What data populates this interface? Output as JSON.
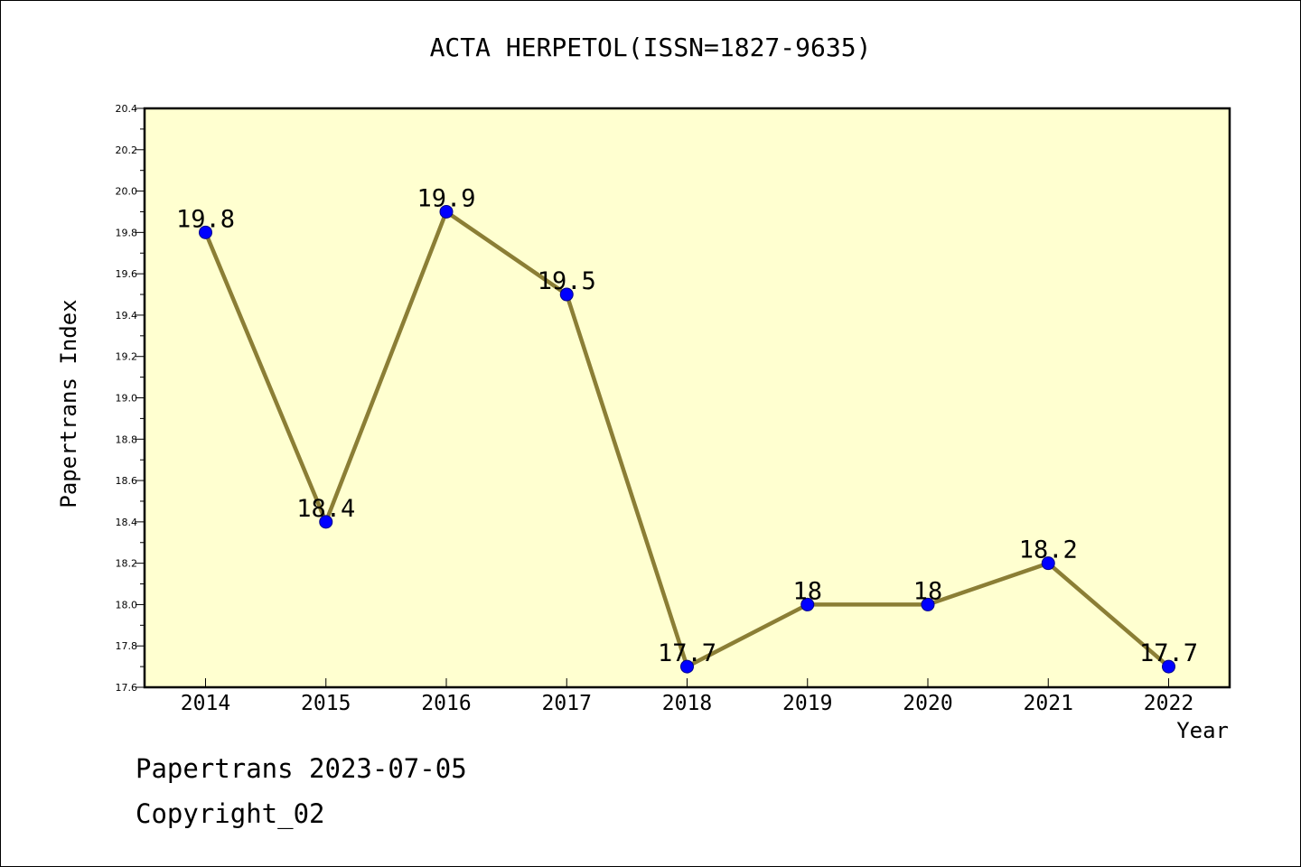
{
  "chart_data": {
    "type": "line",
    "title": "ACTA HERPETOL(ISSN=1827-9635)",
    "xlabel": "Year",
    "ylabel": "Papertrans Index",
    "categories": [
      "2014",
      "2015",
      "2016",
      "2017",
      "2018",
      "2019",
      "2020",
      "2021",
      "2022"
    ],
    "values": [
      19.8,
      18.4,
      19.9,
      19.5,
      17.7,
      18.0,
      18.0,
      18.2,
      17.7
    ],
    "data_labels": [
      "19.8",
      "18.4",
      "19.9",
      "19.5",
      "17.7",
      "18",
      "18",
      "18.2",
      "17.7"
    ],
    "ylim": [
      17.6,
      20.4
    ],
    "yticks": [
      "17.6",
      "17.8",
      "18.0",
      "18.2",
      "18.4",
      "18.6",
      "18.8",
      "19.0",
      "19.2",
      "19.4",
      "19.6",
      "19.8",
      "20.0",
      "20.2",
      "20.4"
    ],
    "grid": false,
    "colors": {
      "plot_background": "#ffffd0",
      "line": "#8b7e35",
      "marker": "#0000ff"
    }
  },
  "footer": {
    "line1": "Papertrans 2023-07-05",
    "line2": "Copyright_02"
  }
}
